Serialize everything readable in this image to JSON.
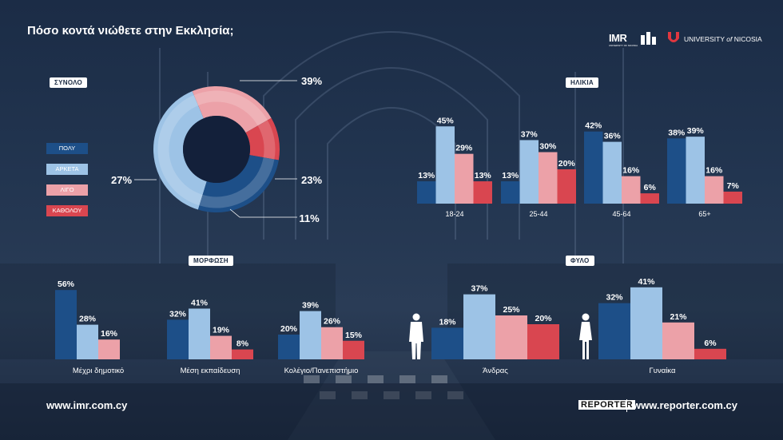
{
  "title": "Πόσο κοντά νιώθετε στην Εκκλησία;",
  "colors": {
    "poly": "#1d4f88",
    "arketa": "#9dc3e6",
    "ligo": "#eca1a8",
    "katholou": "#d94650"
  },
  "legend": [
    "ΠΟΛΥ",
    "ΑΡΚΕΤΑ",
    "ΛΙΓΟ",
    "ΚΑΘΟΛΟΥ"
  ],
  "logos": {
    "imr": "IMR",
    "imr_sub": "UNIVERSITY OF NICOSIA",
    "uni": "UNIVERSITY",
    "uni_of": "of",
    "uni_city": "NICOSIA",
    "reporter": "REPORTER"
  },
  "footer": {
    "left": "www.imr.com.cy",
    "right": "www.reporter.com.cy"
  },
  "chart_data": [
    {
      "type": "pie",
      "label": "ΣΥΝΟΛΟ",
      "categories": [
        "ΠΟΛΥ",
        "ΑΡΚΕΤΑ",
        "ΛΙΓΟ",
        "ΚΑΘΟΛΟΥ"
      ],
      "values": [
        27,
        39,
        23,
        11
      ],
      "value_labels": [
        "27%",
        "39%",
        "23%",
        "11%"
      ]
    },
    {
      "type": "bar",
      "label": "ΗΛΙΚΙΑ",
      "categories": [
        "18-24",
        "25-44",
        "45-64",
        "65+"
      ],
      "series": [
        {
          "name": "ΠΟΛΥ",
          "values": [
            13,
            13,
            42,
            38
          ]
        },
        {
          "name": "ΑΡΚΕΤΑ",
          "values": [
            45,
            37,
            36,
            39
          ]
        },
        {
          "name": "ΛΙΓΟ",
          "values": [
            29,
            30,
            16,
            16
          ]
        },
        {
          "name": "ΚΑΘΟΛΟΥ",
          "values": [
            13,
            20,
            6,
            7
          ]
        }
      ]
    },
    {
      "type": "bar",
      "label": "ΜΟΡΦΩΣΗ",
      "categories": [
        "Μέχρι δημοτικό",
        "Μέση εκπαίδευση",
        "Κολέγιο/Πανεπιστήμιο"
      ],
      "series": [
        {
          "name": "ΠΟΛΥ",
          "values": [
            56,
            32,
            20
          ]
        },
        {
          "name": "ΑΡΚΕΤΑ",
          "values": [
            28,
            41,
            39
          ]
        },
        {
          "name": "ΛΙΓΟ",
          "values": [
            16,
            19,
            26
          ]
        },
        {
          "name": "ΚΑΘΟΛΟΥ",
          "values": [
            null,
            8,
            15
          ]
        }
      ]
    },
    {
      "type": "bar",
      "label": "ΦΥΛΟ",
      "categories": [
        "Άνδρας",
        "Γυναίκα"
      ],
      "series": [
        {
          "name": "ΠΟΛΥ",
          "values": [
            18,
            32
          ]
        },
        {
          "name": "ΑΡΚΕΤΑ",
          "values": [
            37,
            41
          ]
        },
        {
          "name": "ΛΙΓΟ",
          "values": [
            25,
            21
          ]
        },
        {
          "name": "ΚΑΘΟΛΟΥ",
          "values": [
            20,
            6
          ]
        }
      ]
    }
  ]
}
